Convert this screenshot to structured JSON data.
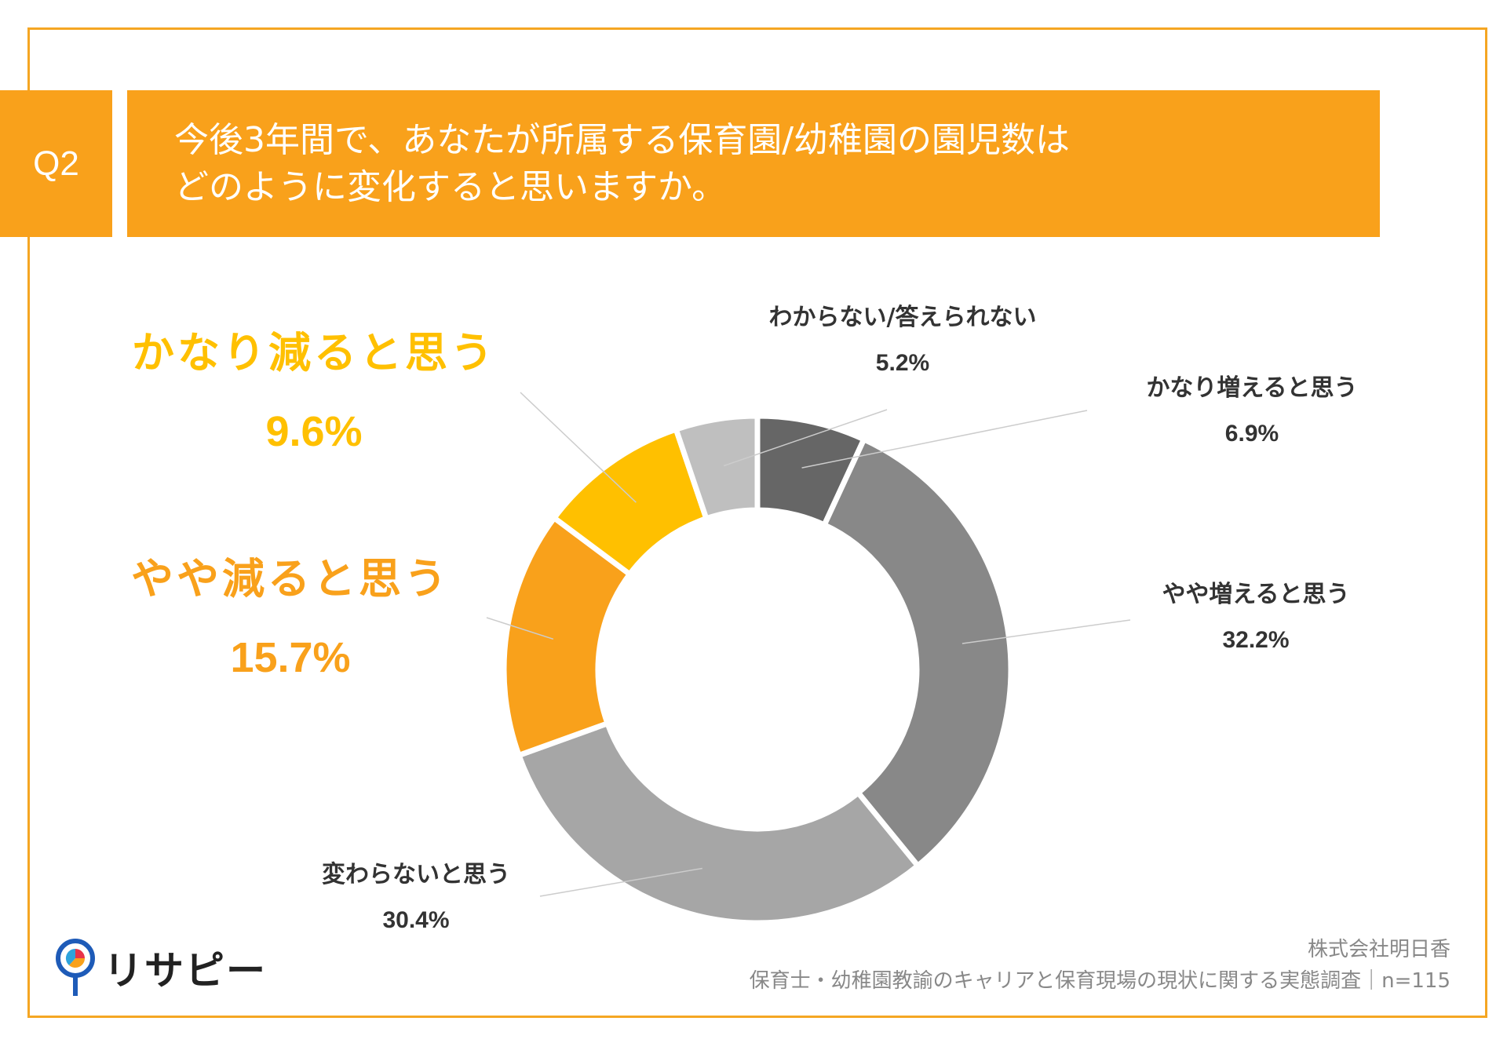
{
  "question": {
    "badge": "Q2",
    "line1": "今後3年間で、あなたが所属する保育園/幼稚園の園児数は",
    "line2": "どのように変化すると思いますか。"
  },
  "colors": {
    "accent": "#F9A11B",
    "border": "#F5A623"
  },
  "chart_data": {
    "type": "pie",
    "subtype": "donut",
    "start": "top, clockwise",
    "slices": [
      {
        "label": "かなり増えると思う",
        "value": 6.9,
        "pct_label": "6.9%",
        "color": "#666666"
      },
      {
        "label": "やや増えると思う",
        "value": 32.2,
        "pct_label": "32.2%",
        "color": "#888888"
      },
      {
        "label": "変わらないと思う",
        "value": 30.4,
        "pct_label": "30.4%",
        "color": "#A6A6A6"
      },
      {
        "label": "やや減ると思う",
        "value": 15.7,
        "pct_label": "15.7%",
        "color": "#F9A11B"
      },
      {
        "label": "かなり減ると思う",
        "value": 9.6,
        "pct_label": "9.6%",
        "color": "#FFC000"
      },
      {
        "label": "わからない/答えられない",
        "value": 5.2,
        "pct_label": "5.2%",
        "color": "#BFBFBF"
      }
    ]
  },
  "footer": {
    "company": "株式会社明日香",
    "survey": "保育士・幼稚園教諭のキャリアと保育現場の現状に関する実態調査｜n=115"
  },
  "logo": {
    "text": "リサピー"
  }
}
